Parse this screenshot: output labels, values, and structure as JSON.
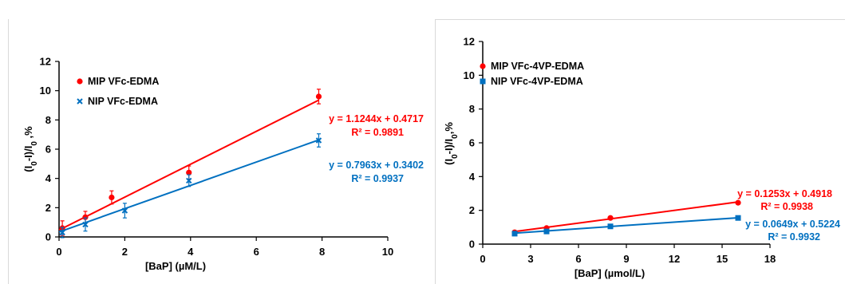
{
  "chart_data": [
    {
      "type": "scatter",
      "xlabel": "[BaP] (µM/L)",
      "ylabel_parts": [
        "(I",
        "0",
        "-I)/I",
        "0",
        " ,%"
      ],
      "xlim": [
        0,
        10
      ],
      "ylim": [
        0,
        12
      ],
      "xticks": [
        0,
        2,
        4,
        6,
        8,
        10
      ],
      "yticks": [
        0,
        2,
        4,
        6,
        8,
        10,
        12
      ],
      "xtick_labels": [
        "0",
        "2",
        "4",
        "6",
        "8",
        "10"
      ],
      "ytick_labels": [
        "0",
        "2",
        "4",
        "6",
        "8",
        "10",
        "12"
      ],
      "grid": false,
      "legend_position": "top-left",
      "series": [
        {
          "name": "MIP VFc-EDMA",
          "color": "#ff0000",
          "marker": "circle",
          "x": [
            0.1,
            0.8,
            1.6,
            3.95,
            7.9
          ],
          "y": [
            0.6,
            1.35,
            2.7,
            4.4,
            9.6
          ],
          "error": [
            0.5,
            0.4,
            0.45,
            0.45,
            0.5
          ],
          "trendline": {
            "slope": 1.1244,
            "intercept": 0.4717,
            "x_range": [
              0,
              7.9
            ]
          },
          "equation": "y = 1.1244x + 0.4717",
          "r2": "R² = 0.9891"
        },
        {
          "name": "NIP VFc-EDMA",
          "color": "#0070c0",
          "marker": "cross",
          "x": [
            0.1,
            0.8,
            2.0,
            3.95,
            7.9
          ],
          "y": [
            0.3,
            0.85,
            1.8,
            3.85,
            6.6
          ],
          "error": [
            0.35,
            0.45,
            0.5,
            0.4,
            0.45
          ],
          "trendline": {
            "slope": 0.7963,
            "intercept": 0.3402,
            "x_range": [
              0,
              7.9
            ]
          },
          "equation": "y = 0.7963x + 0.3402",
          "r2": "R² = 0.9937"
        }
      ]
    },
    {
      "type": "scatter",
      "xlabel": "[BaP] (µmol/L)",
      "ylabel_parts": [
        "(I",
        "0",
        "-I)/I",
        "0",
        ",%"
      ],
      "xlim": [
        0,
        18
      ],
      "ylim": [
        0,
        12
      ],
      "xticks": [
        0,
        3,
        6,
        9,
        12,
        15,
        18
      ],
      "yticks": [
        0,
        2,
        4,
        6,
        8,
        10,
        12
      ],
      "xtick_labels": [
        "0",
        "3",
        "6",
        "9",
        "12",
        "15",
        "18"
      ],
      "ytick_labels": [
        "0",
        "2",
        "4",
        "6",
        "8",
        "10",
        "12"
      ],
      "grid": false,
      "legend_position": "top-left",
      "series": [
        {
          "name": "MIP VFc-4VP-EDMA",
          "color": "#ff0000",
          "marker": "circle",
          "x": [
            2,
            4,
            8,
            16
          ],
          "y": [
            0.7,
            0.95,
            1.55,
            2.45
          ],
          "trendline": {
            "slope": 0.1253,
            "intercept": 0.4918,
            "x_range": [
              2,
              16
            ]
          },
          "equation": "y = 0.1253x + 0.4918",
          "r2": "R² = 0.9938"
        },
        {
          "name": "NIP VFc-4VP-EDMA",
          "color": "#0070c0",
          "marker": "square",
          "x": [
            2,
            4,
            8,
            16
          ],
          "y": [
            0.62,
            0.75,
            1.05,
            1.55
          ],
          "trendline": {
            "slope": 0.0649,
            "intercept": 0.5224,
            "x_range": [
              2,
              16
            ]
          },
          "equation": "y = 0.0649x + 0.5224",
          "r2": "R² = 0.9932"
        }
      ]
    }
  ]
}
